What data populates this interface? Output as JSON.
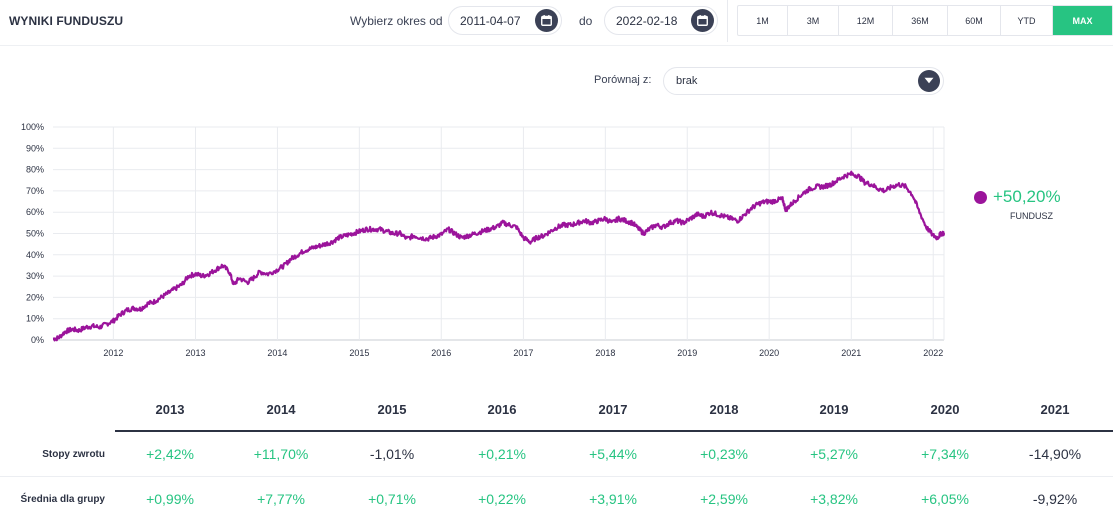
{
  "header": {
    "title": "WYNIKI FUNDUSZU",
    "range_from_label": "Wybierz okres od",
    "date_from": "2011-04-07",
    "range_to_label": "do",
    "date_to": "2022-02-18",
    "periods": [
      "1M",
      "3M",
      "12M",
      "36M",
      "60M",
      "YTD",
      "MAX"
    ],
    "active_period": "MAX"
  },
  "compare": {
    "label": "Porównaj z:",
    "value": "brak"
  },
  "legend": {
    "value": "+50,20%",
    "name": "FUNDUSZ"
  },
  "colors": {
    "series": "#9b149b",
    "positive": "#27c482",
    "neutral": "#2c3243",
    "accent_dark": "#3b4156"
  },
  "chart_data": {
    "type": "line",
    "title": "",
    "xlabel": "",
    "ylabel": "",
    "grid": true,
    "x_ticks": [
      "2012",
      "2013",
      "2014",
      "2015",
      "2016",
      "2017",
      "2018",
      "2019",
      "2020",
      "2021",
      "2022"
    ],
    "y_ticks": [
      "0%",
      "10%",
      "20%",
      "30%",
      "40%",
      "50%",
      "60%",
      "70%",
      "80%",
      "90%",
      "100%"
    ],
    "xlim": [
      "2011-04-07",
      "2022-02-18"
    ],
    "ylim": [
      0,
      100
    ],
    "series": [
      {
        "name": "FUNDUSZ",
        "points": [
          [
            "2011-04-07",
            0.5
          ],
          [
            "2011-05-01",
            1
          ],
          [
            "2011-06-01",
            4
          ],
          [
            "2011-07-01",
            5
          ],
          [
            "2011-08-01",
            4.5
          ],
          [
            "2011-09-01",
            6
          ],
          [
            "2011-10-01",
            6.5
          ],
          [
            "2011-11-01",
            6
          ],
          [
            "2011-12-01",
            7.5
          ],
          [
            "2012-01-01",
            9
          ],
          [
            "2012-02-01",
            12
          ],
          [
            "2012-03-01",
            14
          ],
          [
            "2012-04-01",
            15
          ],
          [
            "2012-05-01",
            14.5
          ],
          [
            "2012-06-01",
            17
          ],
          [
            "2012-07-01",
            18
          ],
          [
            "2012-08-01",
            20
          ],
          [
            "2012-09-01",
            22
          ],
          [
            "2012-10-01",
            24
          ],
          [
            "2012-11-01",
            26
          ],
          [
            "2012-12-01",
            30
          ],
          [
            "2013-01-01",
            31
          ],
          [
            "2013-02-01",
            30
          ],
          [
            "2013-03-01",
            31
          ],
          [
            "2013-04-01",
            33
          ],
          [
            "2013-05-01",
            35
          ],
          [
            "2013-06-01",
            32
          ],
          [
            "2013-06-20",
            26
          ],
          [
            "2013-07-15",
            29
          ],
          [
            "2013-08-20",
            27
          ],
          [
            "2013-09-15",
            29
          ],
          [
            "2013-10-15",
            32
          ],
          [
            "2013-11-20",
            31
          ],
          [
            "2014-01-01",
            33
          ],
          [
            "2014-02-01",
            35
          ],
          [
            "2014-03-01",
            38
          ],
          [
            "2014-04-01",
            40
          ],
          [
            "2014-05-01",
            42
          ],
          [
            "2014-06-01",
            43
          ],
          [
            "2014-07-01",
            44
          ],
          [
            "2014-08-01",
            45
          ],
          [
            "2014-09-01",
            46
          ],
          [
            "2014-10-01",
            48
          ],
          [
            "2014-11-01",
            49
          ],
          [
            "2014-12-01",
            50
          ],
          [
            "2015-01-01",
            51
          ],
          [
            "2015-02-01",
            52
          ],
          [
            "2015-03-01",
            52
          ],
          [
            "2015-04-01",
            52
          ],
          [
            "2015-05-01",
            51
          ],
          [
            "2015-06-01",
            50
          ],
          [
            "2015-07-01",
            50
          ],
          [
            "2015-08-01",
            47.5
          ],
          [
            "2015-09-01",
            49
          ],
          [
            "2015-10-01",
            48
          ],
          [
            "2015-11-01",
            47.5
          ],
          [
            "2015-12-01",
            48.5
          ],
          [
            "2016-01-01",
            49.5
          ],
          [
            "2016-02-01",
            52
          ],
          [
            "2016-03-01",
            50
          ],
          [
            "2016-04-01",
            48
          ],
          [
            "2016-05-01",
            49
          ],
          [
            "2016-06-01",
            50
          ],
          [
            "2016-07-01",
            51
          ],
          [
            "2016-08-01",
            52
          ],
          [
            "2016-09-01",
            53
          ],
          [
            "2016-10-01",
            55
          ],
          [
            "2016-11-01",
            54
          ],
          [
            "2016-12-01",
            53
          ],
          [
            "2017-01-01",
            48
          ],
          [
            "2017-02-01",
            46
          ],
          [
            "2017-03-01",
            48
          ],
          [
            "2017-04-01",
            49
          ],
          [
            "2017-05-01",
            51
          ],
          [
            "2017-06-01",
            53
          ],
          [
            "2017-07-01",
            54
          ],
          [
            "2017-08-01",
            54
          ],
          [
            "2017-09-01",
            55
          ],
          [
            "2017-10-01",
            56
          ],
          [
            "2017-11-01",
            55
          ],
          [
            "2017-12-01",
            56
          ],
          [
            "2018-01-01",
            57
          ],
          [
            "2018-02-01",
            55
          ],
          [
            "2018-03-01",
            57
          ],
          [
            "2018-04-01",
            56
          ],
          [
            "2018-05-01",
            55
          ],
          [
            "2018-06-01",
            52
          ],
          [
            "2018-06-20",
            50
          ],
          [
            "2018-07-15",
            52
          ],
          [
            "2018-08-15",
            54
          ],
          [
            "2018-09-15",
            53
          ],
          [
            "2018-10-15",
            55
          ],
          [
            "2018-11-15",
            56
          ],
          [
            "2018-12-15",
            55
          ],
          [
            "2019-01-15",
            57
          ],
          [
            "2019-02-15",
            59
          ],
          [
            "2019-03-15",
            58
          ],
          [
            "2019-04-15",
            60
          ],
          [
            "2019-05-15",
            59
          ],
          [
            "2019-06-15",
            58
          ],
          [
            "2019-07-15",
            57
          ],
          [
            "2019-08-15",
            56
          ],
          [
            "2019-09-15",
            59
          ],
          [
            "2019-10-15",
            62
          ],
          [
            "2019-11-15",
            64
          ],
          [
            "2019-12-15",
            65
          ],
          [
            "2020-01-15",
            65
          ],
          [
            "2020-02-15",
            66
          ],
          [
            "2020-03-01",
            66
          ],
          [
            "2020-03-15",
            61
          ],
          [
            "2020-04-01",
            63
          ],
          [
            "2020-05-01",
            66
          ],
          [
            "2020-06-01",
            69
          ],
          [
            "2020-07-01",
            71
          ],
          [
            "2020-08-01",
            72
          ],
          [
            "2020-09-01",
            72
          ],
          [
            "2020-10-01",
            73
          ],
          [
            "2020-11-01",
            75
          ],
          [
            "2020-12-01",
            77
          ],
          [
            "2021-01-01",
            78
          ],
          [
            "2021-02-01",
            77
          ],
          [
            "2021-03-01",
            74
          ],
          [
            "2021-04-01",
            73
          ],
          [
            "2021-05-01",
            71
          ],
          [
            "2021-06-01",
            70
          ],
          [
            "2021-07-01",
            72
          ],
          [
            "2021-08-01",
            73
          ],
          [
            "2021-09-01",
            72
          ],
          [
            "2021-10-01",
            68
          ],
          [
            "2021-11-01",
            60
          ],
          [
            "2021-12-01",
            53
          ],
          [
            "2022-01-01",
            49
          ],
          [
            "2022-01-20",
            48
          ],
          [
            "2022-02-05",
            50
          ],
          [
            "2022-02-18",
            50.2
          ]
        ]
      }
    ]
  },
  "returns_table": {
    "years": [
      "2013",
      "2014",
      "2015",
      "2016",
      "2017",
      "2018",
      "2019",
      "2020",
      "2021"
    ],
    "rows": [
      {
        "label": "Stopy zwrotu",
        "values": [
          "+2,42%",
          "+11,70%",
          "-1,01%",
          "+0,21%",
          "+5,44%",
          "+0,23%",
          "+5,27%",
          "+7,34%",
          "-14,90%"
        ]
      },
      {
        "label": "Średnia dla grupy",
        "values": [
          "+0,99%",
          "+7,77%",
          "+0,71%",
          "+0,22%",
          "+3,91%",
          "+2,59%",
          "+3,82%",
          "+6,05%",
          "-9,92%"
        ]
      }
    ]
  }
}
